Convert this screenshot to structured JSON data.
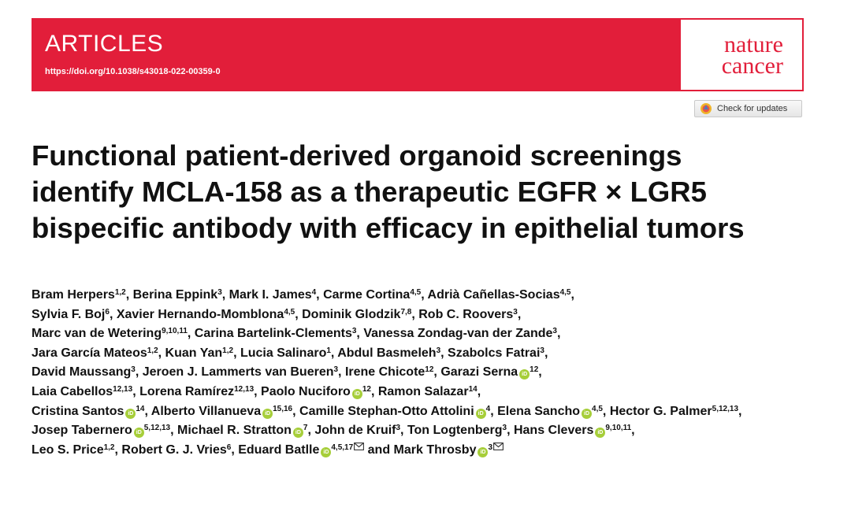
{
  "banner": {
    "section": "ARTICLES",
    "doi": "https://doi.org/10.1038/s43018-022-00359-0",
    "journal_line1": "nature",
    "journal_line2": "cancer",
    "color": "#e21e3a"
  },
  "check_updates": {
    "label": "Check for updates"
  },
  "title_lines": [
    "Functional patient-derived organoid screenings",
    "identify MCLA-158 as a therapeutic EGFR × LGR5",
    "bispecific antibody with efficacy in epithelial tumors"
  ],
  "orcid_badge": "iD",
  "authors": [
    {
      "name": "Bram Herpers",
      "aff": "1,2"
    },
    {
      "name": "Berina Eppink",
      "aff": "3"
    },
    {
      "name": "Mark I. James",
      "aff": "4"
    },
    {
      "name": "Carme Cortina",
      "aff": "4,5"
    },
    {
      "name": "Adrià Cañellas-Socias",
      "aff": "4,5"
    },
    {
      "name": "Sylvia F. Boj",
      "aff": "6"
    },
    {
      "name": "Xavier Hernando-Momblona",
      "aff": "4,5"
    },
    {
      "name": "Dominik Glodzik",
      "aff": "7,8"
    },
    {
      "name": "Rob C. Roovers",
      "aff": "3"
    },
    {
      "name": "Marc van de Wetering",
      "aff": "9,10,11"
    },
    {
      "name": "Carina Bartelink-Clements",
      "aff": "3"
    },
    {
      "name": "Vanessa Zondag-van der Zande",
      "aff": "3"
    },
    {
      "name": "Jara García Mateos",
      "aff": "1,2"
    },
    {
      "name": "Kuan Yan",
      "aff": "1,2"
    },
    {
      "name": "Lucia Salinaro",
      "aff": "1"
    },
    {
      "name": "Abdul Basmeleh",
      "aff": "3"
    },
    {
      "name": "Szabolcs Fatrai",
      "aff": "3"
    },
    {
      "name": "David Maussang",
      "aff": "3"
    },
    {
      "name": "Jeroen J. Lammerts van Bueren",
      "aff": "3"
    },
    {
      "name": "Irene Chicote",
      "aff": "12"
    },
    {
      "name": "Garazi Serna",
      "aff": "12",
      "orcid": true
    },
    {
      "name": "Laia Cabellos",
      "aff": "12,13"
    },
    {
      "name": "Lorena Ramírez",
      "aff": "12,13"
    },
    {
      "name": "Paolo Nuciforo",
      "aff": "12",
      "orcid": true
    },
    {
      "name": "Ramon Salazar",
      "aff": "14"
    },
    {
      "name": "Cristina Santos",
      "aff": "14",
      "orcid": true
    },
    {
      "name": "Alberto Villanueva",
      "aff": "15,16",
      "orcid": true
    },
    {
      "name": "Camille Stephan-Otto Attolini",
      "aff": "4",
      "orcid": true
    },
    {
      "name": "Elena Sancho",
      "aff": "4,5",
      "orcid": true
    },
    {
      "name": "Hector G. Palmer",
      "aff": "5,12,13"
    },
    {
      "name": "Josep Tabernero",
      "aff": "5,12,13",
      "orcid": true
    },
    {
      "name": "Michael R. Stratton",
      "aff": "7",
      "orcid": true
    },
    {
      "name": "John de Kruif",
      "aff": "3"
    },
    {
      "name": "Ton Logtenberg",
      "aff": "3"
    },
    {
      "name": "Hans Clevers",
      "aff": "9,10,11",
      "orcid": true
    },
    {
      "name": "Leo S. Price",
      "aff": "1,2"
    },
    {
      "name": "Robert G. J. Vries",
      "aff": "6"
    },
    {
      "name": "Eduard Batlle",
      "aff": "4,5,17",
      "orcid": true,
      "email": true
    },
    {
      "name": "Mark Throsby",
      "aff": "3",
      "orcid": true,
      "email": true
    }
  ],
  "author_lines": [
    5,
    4,
    3,
    5,
    4,
    4,
    5,
    5,
    4
  ],
  "conjunction": "and",
  "colors": {
    "orcid": "#a6ce39",
    "check_updates_icon_ring": "#f0b429",
    "check_updates_icon_center": "#e8534a"
  }
}
